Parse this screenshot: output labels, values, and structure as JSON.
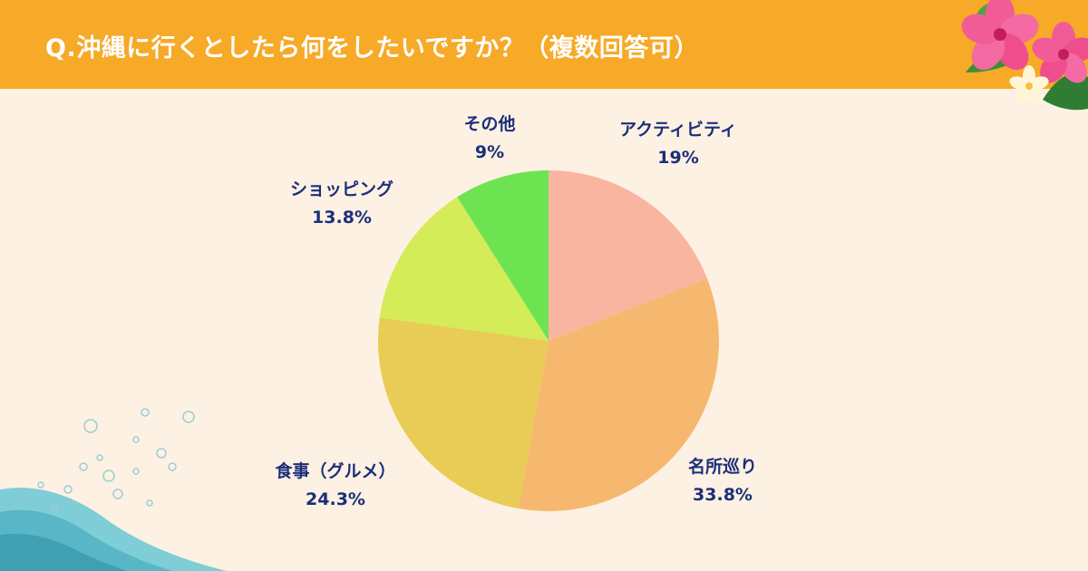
{
  "header": {
    "title": "Q.沖縄に行くとしたら何をしたいですか？（複数回答可）",
    "bg_color": "#f7a928"
  },
  "page": {
    "bg_color": "#fdf1e3"
  },
  "decorations": {
    "top_right": "hibiscus-flower-icon",
    "bottom_left": "water-wave-icon"
  },
  "chart_data": {
    "type": "pie",
    "title": "",
    "label_color": "#1b2f7a",
    "slices": [
      {
        "label": "アクティビティ",
        "value": 19,
        "display": "19%",
        "color": "#f9b5a0"
      },
      {
        "label": "名所巡り",
        "value": 33.8,
        "display": "33.8%",
        "color": "#f6b86e"
      },
      {
        "label": "食事（グルメ）",
        "value": 24.3,
        "display": "24.3%",
        "color": "#e8cc55"
      },
      {
        "label": "ショッピング",
        "value": 13.8,
        "display": "13.8%",
        "color": "#d3ec57"
      },
      {
        "label": "その他",
        "value": 9,
        "display": "9%",
        "color": "#6ee352"
      }
    ]
  }
}
